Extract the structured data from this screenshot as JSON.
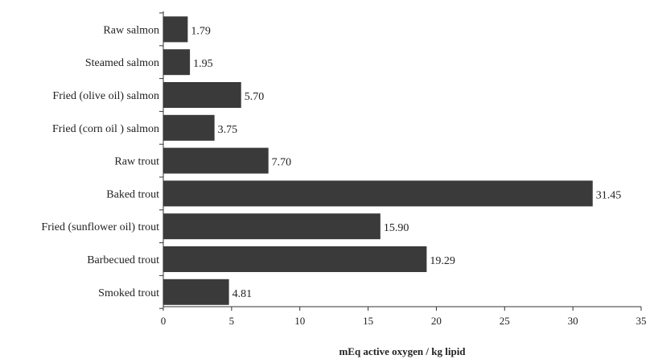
{
  "chart_data": {
    "type": "bar",
    "orientation": "horizontal",
    "categories": [
      "Raw salmon",
      "Steamed salmon",
      "Fried (olive oil) salmon",
      "Fried (corn oil ) salmon",
      "Raw trout",
      "Baked trout",
      "Fried (sunflower oil) trout",
      "Barbecued trout",
      "Smoked trout"
    ],
    "values": [
      1.79,
      1.95,
      5.7,
      3.75,
      7.7,
      31.45,
      15.9,
      19.29,
      4.81
    ],
    "value_labels": [
      "1.79",
      "1.95",
      "5.70",
      "3.75",
      "7.70",
      "31.45",
      "15.90",
      "19.29",
      "4.81"
    ],
    "xlabel": "mEq active oxygen / kg lipid",
    "xlim": [
      0,
      35
    ],
    "xticks": [
      0,
      5,
      10,
      15,
      20,
      25,
      30,
      35
    ],
    "grid": false,
    "bar_color": "#3a3a3a"
  }
}
